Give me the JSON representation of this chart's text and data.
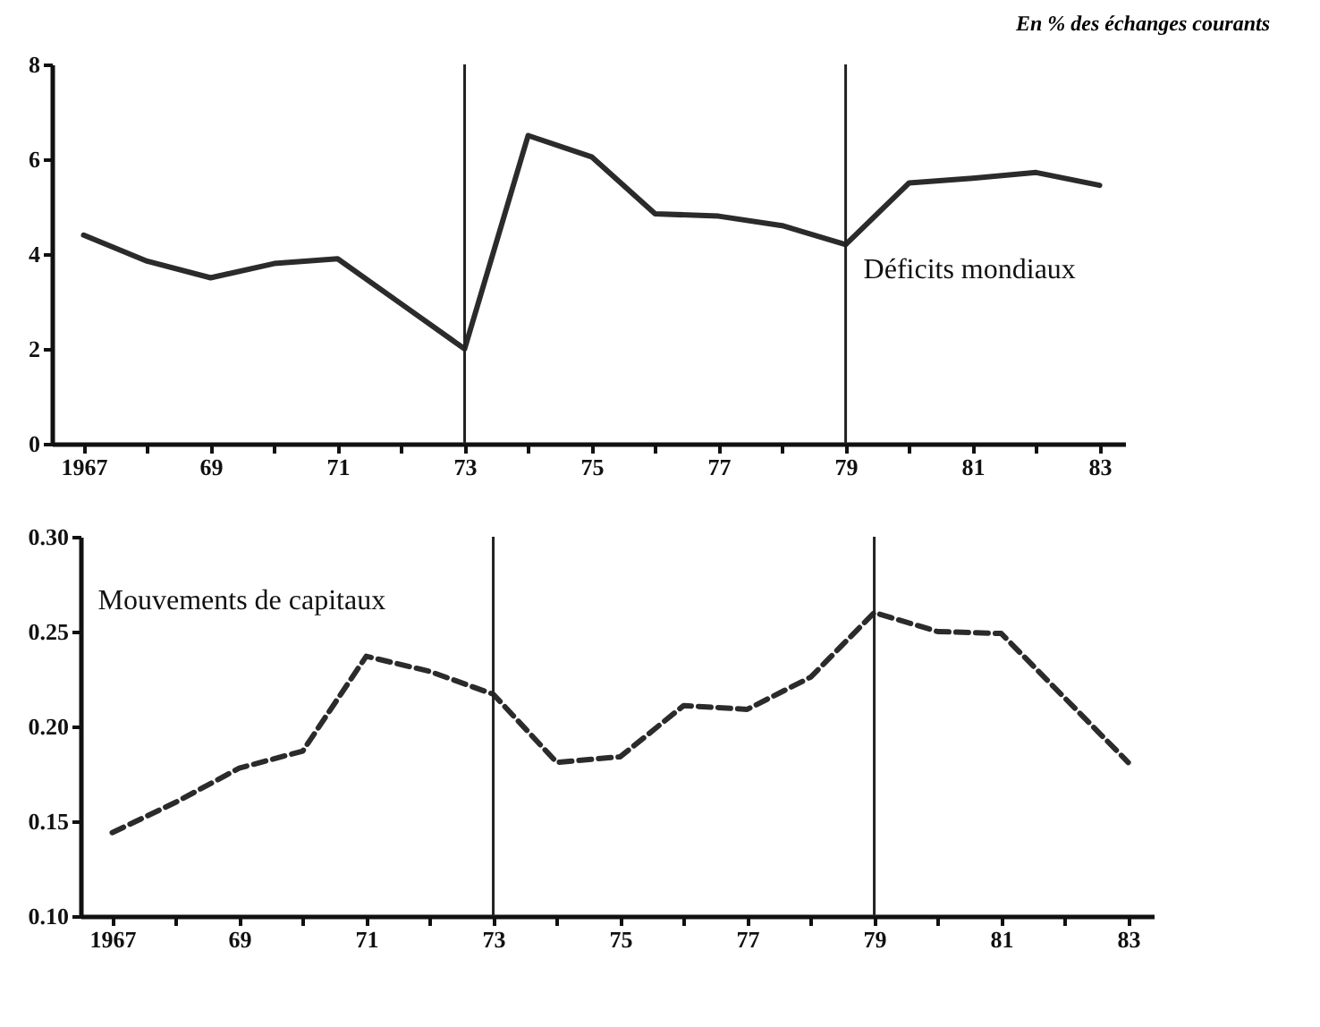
{
  "chart_data": [
    {
      "type": "line",
      "title": "En % des échanges courants",
      "x": [
        1967,
        1968,
        1969,
        1970,
        1971,
        1972,
        1973,
        1974,
        1975,
        1976,
        1977,
        1978,
        1979,
        1980,
        1981,
        1982,
        1983
      ],
      "series": [
        {
          "name": "Déficits mondiaux",
          "color": "#2b2b2b",
          "line_style": "solid",
          "values": [
            4.4,
            3.85,
            3.5,
            3.8,
            3.9,
            2.95,
            2.0,
            6.5,
            6.05,
            4.85,
            4.8,
            4.6,
            4.2,
            5.5,
            5.6,
            5.72,
            5.45
          ]
        }
      ],
      "xlim": [
        1966.5,
        1983.4
      ],
      "xticks": [
        {
          "value": 1967,
          "label": "1967"
        },
        {
          "value": 1968,
          "label": null
        },
        {
          "value": 1969,
          "label": "69"
        },
        {
          "value": 1970,
          "label": null
        },
        {
          "value": 1971,
          "label": "71"
        },
        {
          "value": 1972,
          "label": null
        },
        {
          "value": 1973,
          "label": "73"
        },
        {
          "value": 1974,
          "label": null
        },
        {
          "value": 1975,
          "label": "75"
        },
        {
          "value": 1976,
          "label": null
        },
        {
          "value": 1977,
          "label": "77"
        },
        {
          "value": 1978,
          "label": null
        },
        {
          "value": 1979,
          "label": "79"
        },
        {
          "value": 1980,
          "label": null
        },
        {
          "value": 1981,
          "label": "81"
        },
        {
          "value": 1982,
          "label": null
        },
        {
          "value": 1983,
          "label": "83"
        }
      ],
      "ylim": [
        0,
        8
      ],
      "yticks": [
        0,
        2,
        4,
        6,
        8
      ],
      "ref_lines": [
        {
          "axis": "x",
          "value": 1973
        },
        {
          "axis": "x",
          "value": 1979
        }
      ]
    },
    {
      "type": "line",
      "x": [
        1967,
        1968,
        1969,
        1970,
        1971,
        1972,
        1973,
        1974,
        1975,
        1976,
        1977,
        1978,
        1979,
        1980,
        1981,
        1982,
        1983
      ],
      "series": [
        {
          "name": "Mouvements de capitaux",
          "color": "#2b2b2b",
          "line_style": "dashed",
          "values": [
            0.144,
            0.16,
            0.178,
            0.187,
            0.237,
            0.229,
            0.217,
            0.181,
            0.184,
            0.211,
            0.209,
            0.226,
            0.26,
            0.25,
            0.249,
            0.215,
            0.181
          ]
        }
      ],
      "xlim": [
        1966.5,
        1983.4
      ],
      "xticks": [
        {
          "value": 1967,
          "label": "1967"
        },
        {
          "value": 1968,
          "label": null
        },
        {
          "value": 1969,
          "label": "69"
        },
        {
          "value": 1970,
          "label": null
        },
        {
          "value": 1971,
          "label": "71"
        },
        {
          "value": 1972,
          "label": null
        },
        {
          "value": 1973,
          "label": "73"
        },
        {
          "value": 1974,
          "label": null
        },
        {
          "value": 1975,
          "label": "75"
        },
        {
          "value": 1976,
          "label": null
        },
        {
          "value": 1977,
          "label": "77"
        },
        {
          "value": 1978,
          "label": null
        },
        {
          "value": 1979,
          "label": "79"
        },
        {
          "value": 1980,
          "label": null
        },
        {
          "value": 1981,
          "label": "81"
        },
        {
          "value": 1982,
          "label": null
        },
        {
          "value": 1983,
          "label": "83"
        }
      ],
      "ylim": [
        0.1,
        0.3
      ],
      "yticks": [
        {
          "value": 0.1,
          "label": "0.10"
        },
        {
          "value": 0.15,
          "label": "0.15"
        },
        {
          "value": 0.2,
          "label": "0.20"
        },
        {
          "value": 0.25,
          "label": "0.25"
        },
        {
          "value": 0.3,
          "label": "0.30"
        }
      ],
      "ref_lines": [
        {
          "axis": "x",
          "value": 1973
        },
        {
          "axis": "x",
          "value": 1979
        }
      ]
    }
  ]
}
